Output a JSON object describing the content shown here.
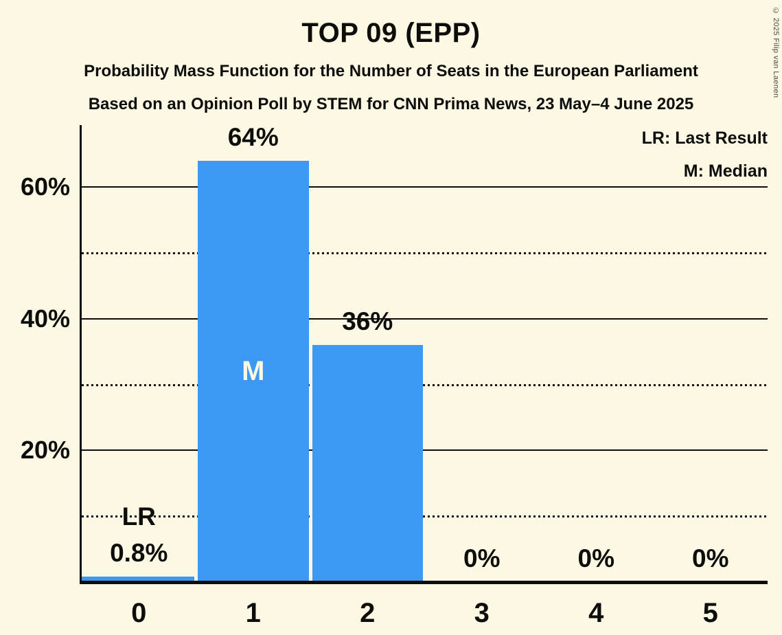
{
  "page": {
    "background_color": "#FCF8E3",
    "text_color": "#0D0D0B"
  },
  "header": {
    "title": "TOP 09 (EPP)",
    "subtitle1": "Probability Mass Function for the Number of Seats in the European Parliament",
    "subtitle2": "Based on an Opinion Poll by STEM for CNN Prima News, 23 May–4 June 2025"
  },
  "legend": {
    "lr": "LR: Last Result",
    "m": "M: Median"
  },
  "copyright": "© 2025 Filip van Laenen",
  "chart_data": {
    "type": "bar",
    "title": "TOP 09 (EPP)",
    "categories": [
      "0",
      "1",
      "2",
      "3",
      "4",
      "5"
    ],
    "values": [
      0.8,
      64,
      36,
      0,
      0,
      0
    ],
    "value_labels": [
      "0.8%",
      "64%",
      "36%",
      "0%",
      "0%",
      "0%"
    ],
    "bar_color": "#3B99F4",
    "inside_label_color": "#FCF8E3",
    "xlabel": "",
    "ylabel": "",
    "ylim": [
      0,
      69.4
    ],
    "grid": "horizontal",
    "legend_position": "top-right",
    "gridlines": [
      {
        "pct": 10,
        "style": "dotted"
      },
      {
        "pct": 20,
        "style": "solid",
        "label": "20%"
      },
      {
        "pct": 30,
        "style": "dotted"
      },
      {
        "pct": 40,
        "style": "solid",
        "label": "40%"
      },
      {
        "pct": 50,
        "style": "dotted"
      },
      {
        "pct": 60,
        "style": "solid",
        "label": "60%"
      }
    ],
    "annotations": [
      {
        "category": "0",
        "text": "LR",
        "placement": "above_value_label"
      },
      {
        "category": "1",
        "text": "M",
        "placement": "inside_bar_center"
      }
    ]
  }
}
